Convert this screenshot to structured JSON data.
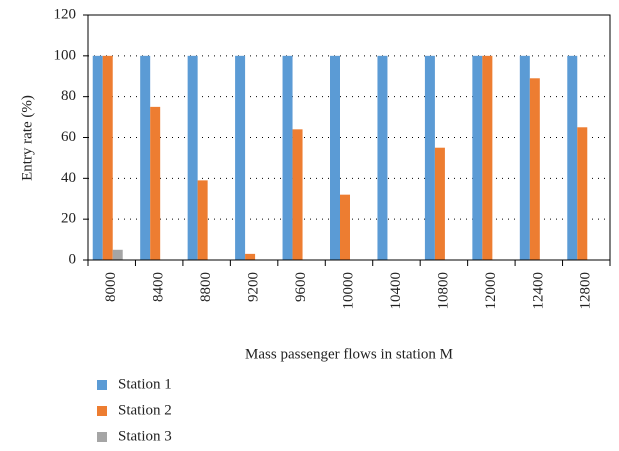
{
  "chart_data": {
    "type": "bar",
    "x_label": "Mass passenger flows in station M",
    "y_label": "Entry rate (%)",
    "categories": [
      "8000",
      "8400",
      "8800",
      "9200",
      "9600",
      "10000",
      "10400",
      "10800",
      "12000",
      "12400",
      "12800"
    ],
    "series": [
      {
        "name": "Station 1",
        "color": "#5b9bd5",
        "values": [
          100,
          100,
          100,
          100,
          100,
          100,
          100,
          100,
          100,
          100,
          100
        ]
      },
      {
        "name": "Station 2",
        "color": "#ed7d31",
        "values": [
          100,
          75,
          39,
          3,
          64,
          32,
          0,
          55,
          100,
          89,
          65
        ]
      },
      {
        "name": "Station 3",
        "color": "#a5a5a5",
        "values": [
          5,
          0,
          0,
          0,
          0,
          0,
          0,
          0,
          0,
          0,
          0
        ]
      }
    ],
    "ylim": [
      0,
      120
    ],
    "yticks": [
      0,
      20,
      40,
      60,
      80,
      100,
      120
    ],
    "grid": true
  }
}
